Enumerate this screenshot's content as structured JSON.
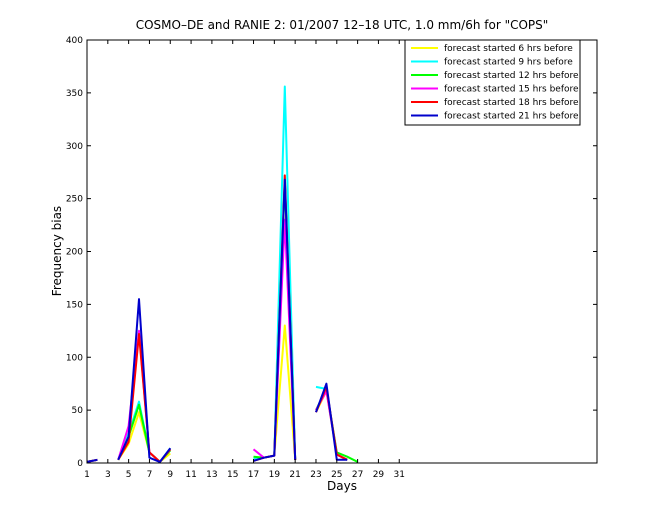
{
  "chart_data": {
    "type": "line",
    "title": "COSMO–DE and RANIE 2: 01/2007 12–18 UTC, 1.0 mm/6h for \"COPS\"",
    "xlabel": "Days",
    "ylabel": "Frequency bias",
    "xlim": [
      1,
      50
    ],
    "ylim": [
      0,
      400
    ],
    "xticks": [
      1,
      3,
      5,
      7,
      9,
      11,
      13,
      15,
      17,
      19,
      21,
      23,
      25,
      27,
      29,
      31
    ],
    "yticks": [
      0,
      50,
      100,
      150,
      200,
      250,
      300,
      350,
      400
    ],
    "legend_position": "top-right",
    "grid": false,
    "series": [
      {
        "name": "forecast started 6 hrs before",
        "color": "#ffff00",
        "points": [
          [
            1,
            1
          ],
          [
            2,
            3
          ],
          [
            null,
            null
          ],
          [
            4,
            3
          ],
          [
            5,
            18
          ],
          [
            6,
            48
          ],
          [
            7,
            10
          ],
          [
            8,
            1
          ],
          [
            9,
            9
          ],
          [
            null,
            null
          ],
          [
            17,
            2
          ],
          [
            18,
            5
          ],
          [
            19,
            7
          ],
          [
            20,
            130
          ],
          [
            21,
            3
          ],
          [
            null,
            null
          ],
          [
            23,
            48
          ],
          [
            24,
            68
          ],
          [
            25,
            8
          ],
          [
            26,
            3
          ]
        ]
      },
      {
        "name": "forecast started 9 hrs before",
        "color": "#00ffff",
        "points": [
          [
            1,
            1
          ],
          [
            2,
            3
          ],
          [
            null,
            null
          ],
          [
            4,
            3
          ],
          [
            5,
            28
          ],
          [
            6,
            58
          ],
          [
            7,
            10
          ],
          [
            8,
            1
          ],
          [
            9,
            14
          ],
          [
            null,
            null
          ],
          [
            17,
            4
          ],
          [
            18,
            5
          ],
          [
            19,
            7
          ],
          [
            20,
            356
          ],
          [
            21,
            3
          ],
          [
            null,
            null
          ],
          [
            23,
            72
          ],
          [
            24,
            70
          ],
          [
            25,
            8
          ],
          [
            26,
            3
          ]
        ]
      },
      {
        "name": "forecast started 12 hrs before",
        "color": "#00ff00",
        "points": [
          [
            1,
            1
          ],
          [
            2,
            3
          ],
          [
            null,
            null
          ],
          [
            4,
            3
          ],
          [
            5,
            25
          ],
          [
            6,
            55
          ],
          [
            7,
            10
          ],
          [
            8,
            1
          ],
          [
            9,
            12
          ],
          [
            null,
            null
          ],
          [
            17,
            6
          ],
          [
            18,
            5
          ],
          [
            19,
            7
          ],
          [
            20,
            265
          ],
          [
            21,
            3
          ],
          [
            null,
            null
          ],
          [
            23,
            50
          ],
          [
            24,
            70
          ],
          [
            25,
            10
          ],
          [
            26,
            6
          ],
          [
            27,
            1
          ]
        ]
      },
      {
        "name": "forecast started 15 hrs before",
        "color": "#ff00ff",
        "points": [
          [
            1,
            1
          ],
          [
            2,
            3
          ],
          [
            null,
            null
          ],
          [
            4,
            3
          ],
          [
            5,
            35
          ],
          [
            6,
            125
          ],
          [
            7,
            10
          ],
          [
            8,
            1
          ],
          [
            9,
            13
          ],
          [
            null,
            null
          ],
          [
            17,
            13
          ],
          [
            18,
            5
          ],
          [
            19,
            7
          ],
          [
            20,
            230
          ],
          [
            21,
            3
          ],
          [
            null,
            null
          ],
          [
            23,
            50
          ],
          [
            24,
            68
          ],
          [
            25,
            8
          ],
          [
            26,
            3
          ]
        ]
      },
      {
        "name": "forecast started 18 hrs before",
        "color": "#ff0000",
        "points": [
          [
            1,
            1
          ],
          [
            2,
            3
          ],
          [
            null,
            null
          ],
          [
            4,
            3
          ],
          [
            5,
            20
          ],
          [
            6,
            122
          ],
          [
            7,
            10
          ],
          [
            8,
            1
          ],
          [
            9,
            13
          ],
          [
            null,
            null
          ],
          [
            17,
            2
          ],
          [
            18,
            5
          ],
          [
            19,
            7
          ],
          [
            20,
            272
          ],
          [
            21,
            3
          ],
          [
            null,
            null
          ],
          [
            23,
            48
          ],
          [
            24,
            72
          ],
          [
            25,
            8
          ],
          [
            26,
            3
          ]
        ]
      },
      {
        "name": "forecast started 21 hrs before",
        "color": "#0000cc",
        "points": [
          [
            1,
            1
          ],
          [
            2,
            3
          ],
          [
            null,
            null
          ],
          [
            4,
            3
          ],
          [
            5,
            25
          ],
          [
            6,
            155
          ],
          [
            7,
            5
          ],
          [
            8,
            1
          ],
          [
            9,
            14
          ],
          [
            null,
            null
          ],
          [
            17,
            2
          ],
          [
            18,
            5
          ],
          [
            19,
            7
          ],
          [
            20,
            268
          ],
          [
            21,
            3
          ],
          [
            null,
            null
          ],
          [
            23,
            48
          ],
          [
            24,
            75
          ],
          [
            25,
            3
          ],
          [
            26,
            3
          ]
        ]
      }
    ]
  }
}
